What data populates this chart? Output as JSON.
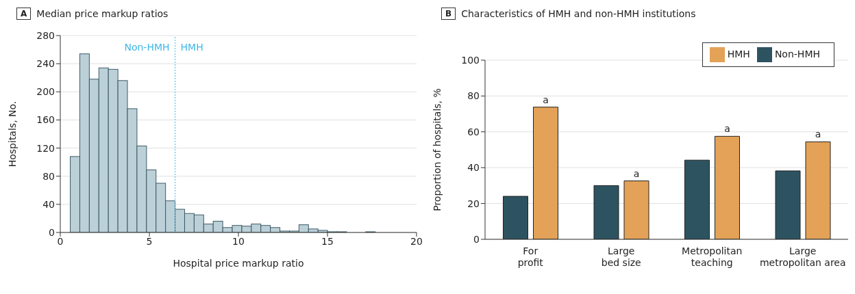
{
  "chart_data": [
    {
      "type": "histogram",
      "title": "Median price markup ratios",
      "xlabel": "Hospital price markup ratio",
      "ylabel": "Hospitals, No.",
      "bins": [
        0.56,
        1.095,
        1.63,
        2.165,
        2.7,
        3.235,
        3.77,
        4.305,
        4.84,
        5.375,
        5.91,
        6.445,
        6.98,
        7.515,
        8.05,
        8.585,
        9.12,
        9.655,
        10.19,
        10.725,
        11.26,
        11.795,
        12.33,
        12.865,
        13.4,
        13.935,
        14.47,
        15.005,
        15.54,
        16.075,
        16.61,
        17.145,
        17.68
      ],
      "values": [
        108,
        254,
        218,
        234,
        232,
        216,
        176,
        123,
        89,
        70,
        45,
        33,
        27,
        25,
        12,
        16,
        7,
        10,
        9,
        12,
        10,
        7,
        2,
        2,
        11,
        5,
        3,
        1,
        1,
        0,
        0,
        1
      ],
      "color": "#bcd0d8",
      "xlim": [
        0,
        20
      ],
      "xticks": [
        0,
        5,
        10,
        15,
        20
      ],
      "ylim": [
        0,
        280
      ],
      "yticks": [
        0,
        40,
        80,
        120,
        160,
        200,
        240,
        280
      ],
      "grid": "y",
      "ref_lines": [
        {
          "axis": "x",
          "value": 6.445,
          "color": "#3fb8e8",
          "line_style": "dotted"
        }
      ],
      "annotations": [
        "A",
        "Non-HMH",
        "HMH"
      ]
    },
    {
      "type": "bar",
      "title": "Characteristics of HMH and non-HMH institutions",
      "ylabel": "Proportion of hospitals, %",
      "categories": [
        "For profit",
        "Large bed size",
        "Metropolitan teaching",
        "Large metropolitan area"
      ],
      "series": [
        {
          "name": "Non-HMH",
          "color": "#2d5361",
          "values": [
            24.0,
            30.0,
            44.2,
            38.2
          ]
        },
        {
          "name": "HMH",
          "color": "#e3a257",
          "values": [
            73.8,
            32.6,
            57.5,
            54.4
          ]
        }
      ],
      "ylim": [
        0,
        100
      ],
      "yticks": [
        0,
        20,
        40,
        60,
        80,
        100
      ],
      "grid": "y",
      "legend": "top right",
      "annotations": [
        "B",
        {
          "text": "a",
          "x": "For profit",
          "y": 73.8
        },
        {
          "text": "a",
          "x": "Large bed size",
          "y": 32.6
        },
        {
          "text": "a",
          "x": "Metropolitan teaching",
          "y": 57.5
        },
        {
          "text": "a",
          "x": "Large metropolitan area",
          "y": 54.4
        }
      ]
    }
  ]
}
